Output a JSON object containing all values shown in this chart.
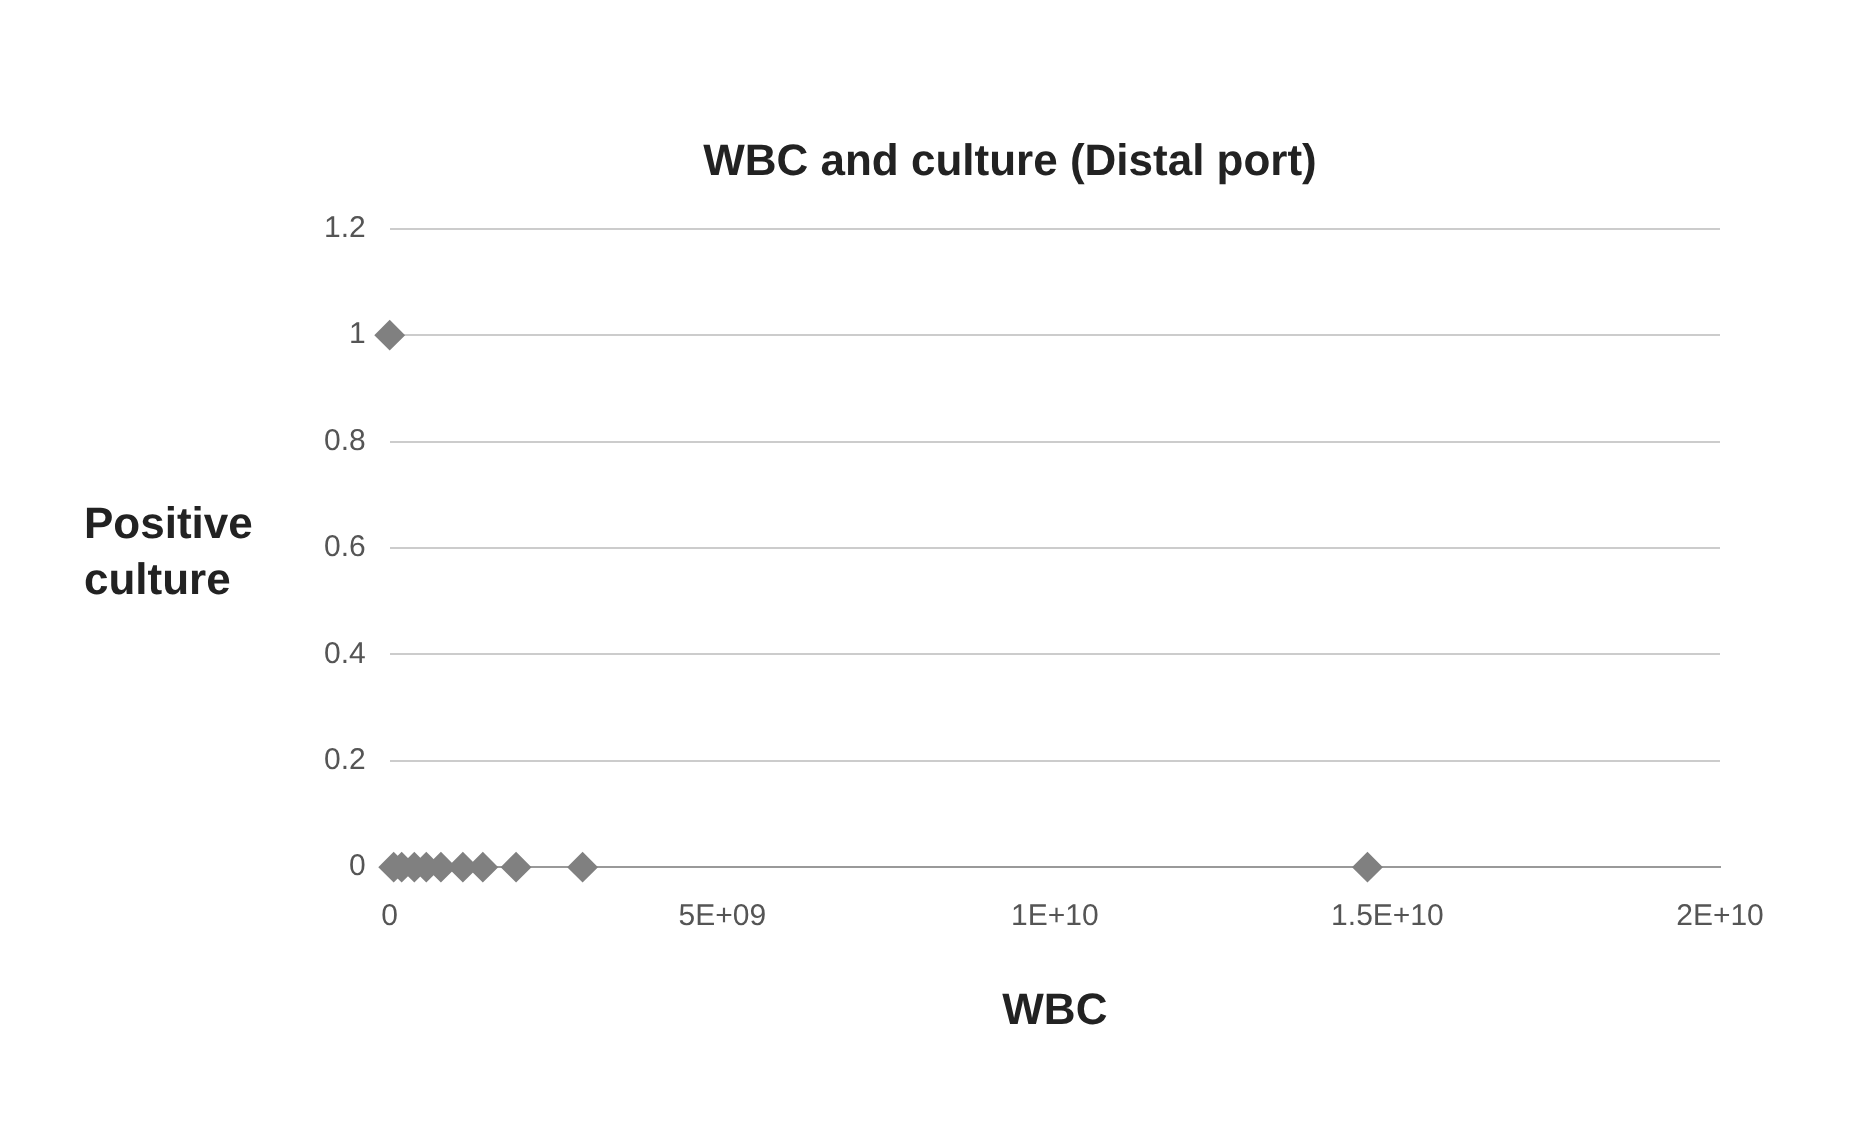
{
  "chart_data": {
    "type": "scatter",
    "title": "WBC and culture (Distal port)",
    "xlabel": "WBC",
    "ylabel": "Positive culture",
    "x": [
      60000000,
      180000000,
      370000000,
      550000000,
      770000000,
      1100000000,
      1400000000,
      1900000000,
      2900000000,
      14700000000,
      0
    ],
    "values": [
      0,
      0,
      0,
      0,
      0,
      0,
      0,
      0,
      0,
      0,
      1
    ],
    "color": "#808080",
    "marker": "diamond",
    "grid": "y",
    "legend": false,
    "xlim": [
      0,
      20000000000
    ],
    "xticks": [
      {
        "value": 0,
        "label": "0"
      },
      {
        "value": 5000000000,
        "label": "5E+09"
      },
      {
        "value": 10000000000,
        "label": "1E+10"
      },
      {
        "value": 15000000000,
        "label": "1.5E+10"
      },
      {
        "value": 20000000000,
        "label": "2E+10"
      }
    ],
    "ylim": [
      0,
      1.2
    ],
    "yticks": [
      0,
      0.2,
      0.4,
      0.6,
      0.8,
      1,
      1.2
    ]
  }
}
